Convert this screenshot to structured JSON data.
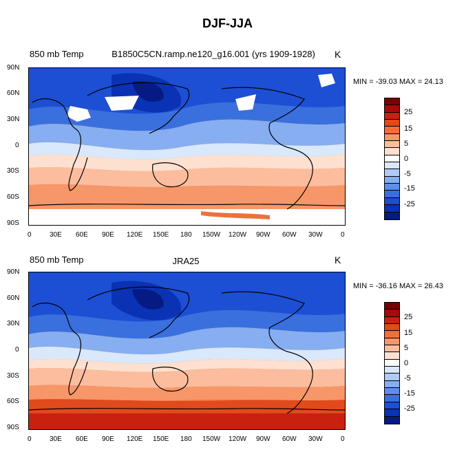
{
  "title": "DJF-JJA",
  "units": "K",
  "colorbar": {
    "labels": [
      "25",
      "15",
      "5",
      "0",
      "-5",
      "-15",
      "-25"
    ],
    "colors": [
      "#7a0000",
      "#a80a0a",
      "#c8210f",
      "#e04a1c",
      "#f0703a",
      "#f79669",
      "#fbbd9e",
      "#fde0cf",
      "#ffffff",
      "#d9e8fb",
      "#afcbf4",
      "#86aef0",
      "#5d8fe8",
      "#3a6fde",
      "#1c4fd4",
      "#0a32b4",
      "#061a84"
    ]
  },
  "axes": {
    "lon_labels": [
      "0",
      "30E",
      "60E",
      "90E",
      "120E",
      "150E",
      "180",
      "150W",
      "120W",
      "90W",
      "60W",
      "30W",
      "0"
    ],
    "lat_labels": [
      "90N",
      "60N",
      "30N",
      "0",
      "30S",
      "60S",
      "90S"
    ]
  },
  "panels": [
    {
      "left_label": "850 mb Temp",
      "center_label": "B1850C5CN.ramp.ne120_g16.001 (yrs 1909-1928)",
      "minmax": "MIN = -39.03 MAX =  24.13"
    },
    {
      "left_label": "850 mb Temp",
      "center_label": "JRA25",
      "minmax": "MIN = -36.16 MAX =  26.43"
    }
  ]
}
